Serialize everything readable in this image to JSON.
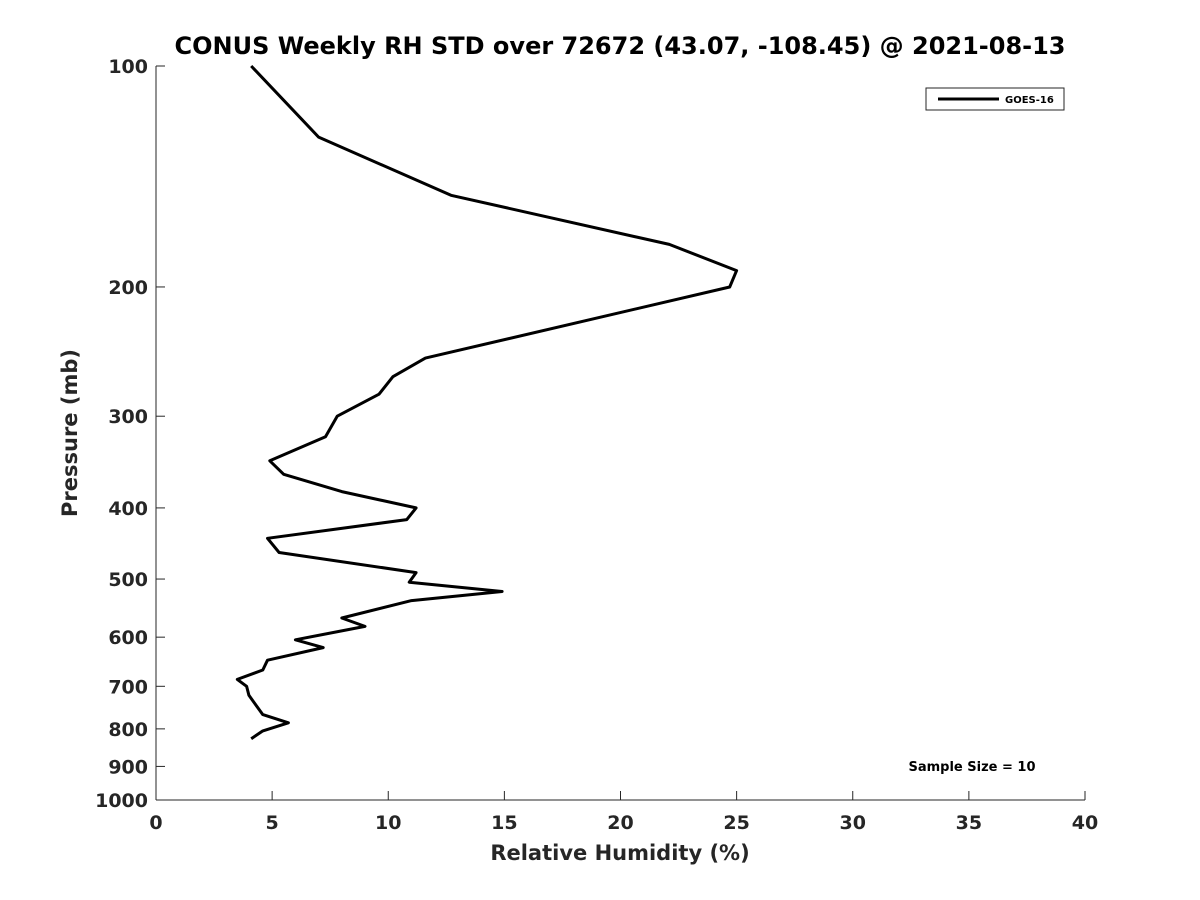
{
  "chart_data": {
    "type": "line",
    "title": "CONUS Weekly RH STD over 72672 (43.07, -108.45) @ 2021-08-13",
    "xlabel": "Relative Humidity (%)",
    "ylabel": "Pressure (mb)",
    "xlim": [
      0,
      40
    ],
    "ylim": [
      100,
      1000
    ],
    "y_scale": "log",
    "y_reversed": true,
    "x_ticks": [
      0,
      5,
      10,
      15,
      20,
      25,
      30,
      35,
      40
    ],
    "x_tick_labels": [
      "0",
      "5",
      "10",
      "15",
      "20",
      "25",
      "30",
      "35",
      "40"
    ],
    "y_ticks": [
      100,
      200,
      300,
      400,
      500,
      600,
      700,
      800,
      900,
      1000
    ],
    "y_tick_labels": [
      "100",
      "200",
      "300",
      "400",
      "500",
      "600",
      "700",
      "800",
      "900",
      "1000"
    ],
    "legend_position": "top-right",
    "grid": false,
    "annotation": "Sample Size = 10",
    "series": [
      {
        "name": "GOES-16",
        "color": "#000000",
        "points": [
          {
            "x": 4.1,
            "y": 100
          },
          {
            "x": 7.0,
            "y": 125
          },
          {
            "x": 12.7,
            "y": 150
          },
          {
            "x": 22.1,
            "y": 175
          },
          {
            "x": 25.0,
            "y": 190
          },
          {
            "x": 24.7,
            "y": 200
          },
          {
            "x": 11.6,
            "y": 250
          },
          {
            "x": 10.2,
            "y": 265
          },
          {
            "x": 9.6,
            "y": 280
          },
          {
            "x": 7.8,
            "y": 300
          },
          {
            "x": 7.3,
            "y": 320
          },
          {
            "x": 4.9,
            "y": 345
          },
          {
            "x": 5.5,
            "y": 360
          },
          {
            "x": 8.0,
            "y": 380
          },
          {
            "x": 11.2,
            "y": 400
          },
          {
            "x": 10.8,
            "y": 415
          },
          {
            "x": 4.8,
            "y": 440
          },
          {
            "x": 5.3,
            "y": 460
          },
          {
            "x": 11.2,
            "y": 490
          },
          {
            "x": 10.9,
            "y": 505
          },
          {
            "x": 14.9,
            "y": 520
          },
          {
            "x": 11.0,
            "y": 535
          },
          {
            "x": 8.0,
            "y": 565
          },
          {
            "x": 9.0,
            "y": 580
          },
          {
            "x": 6.0,
            "y": 605
          },
          {
            "x": 7.2,
            "y": 620
          },
          {
            "x": 4.8,
            "y": 645
          },
          {
            "x": 4.6,
            "y": 665
          },
          {
            "x": 3.5,
            "y": 685
          },
          {
            "x": 3.9,
            "y": 700
          },
          {
            "x": 4.0,
            "y": 720
          },
          {
            "x": 4.6,
            "y": 765
          },
          {
            "x": 5.7,
            "y": 785
          },
          {
            "x": 4.6,
            "y": 805
          },
          {
            "x": 4.1,
            "y": 825
          }
        ]
      }
    ]
  }
}
